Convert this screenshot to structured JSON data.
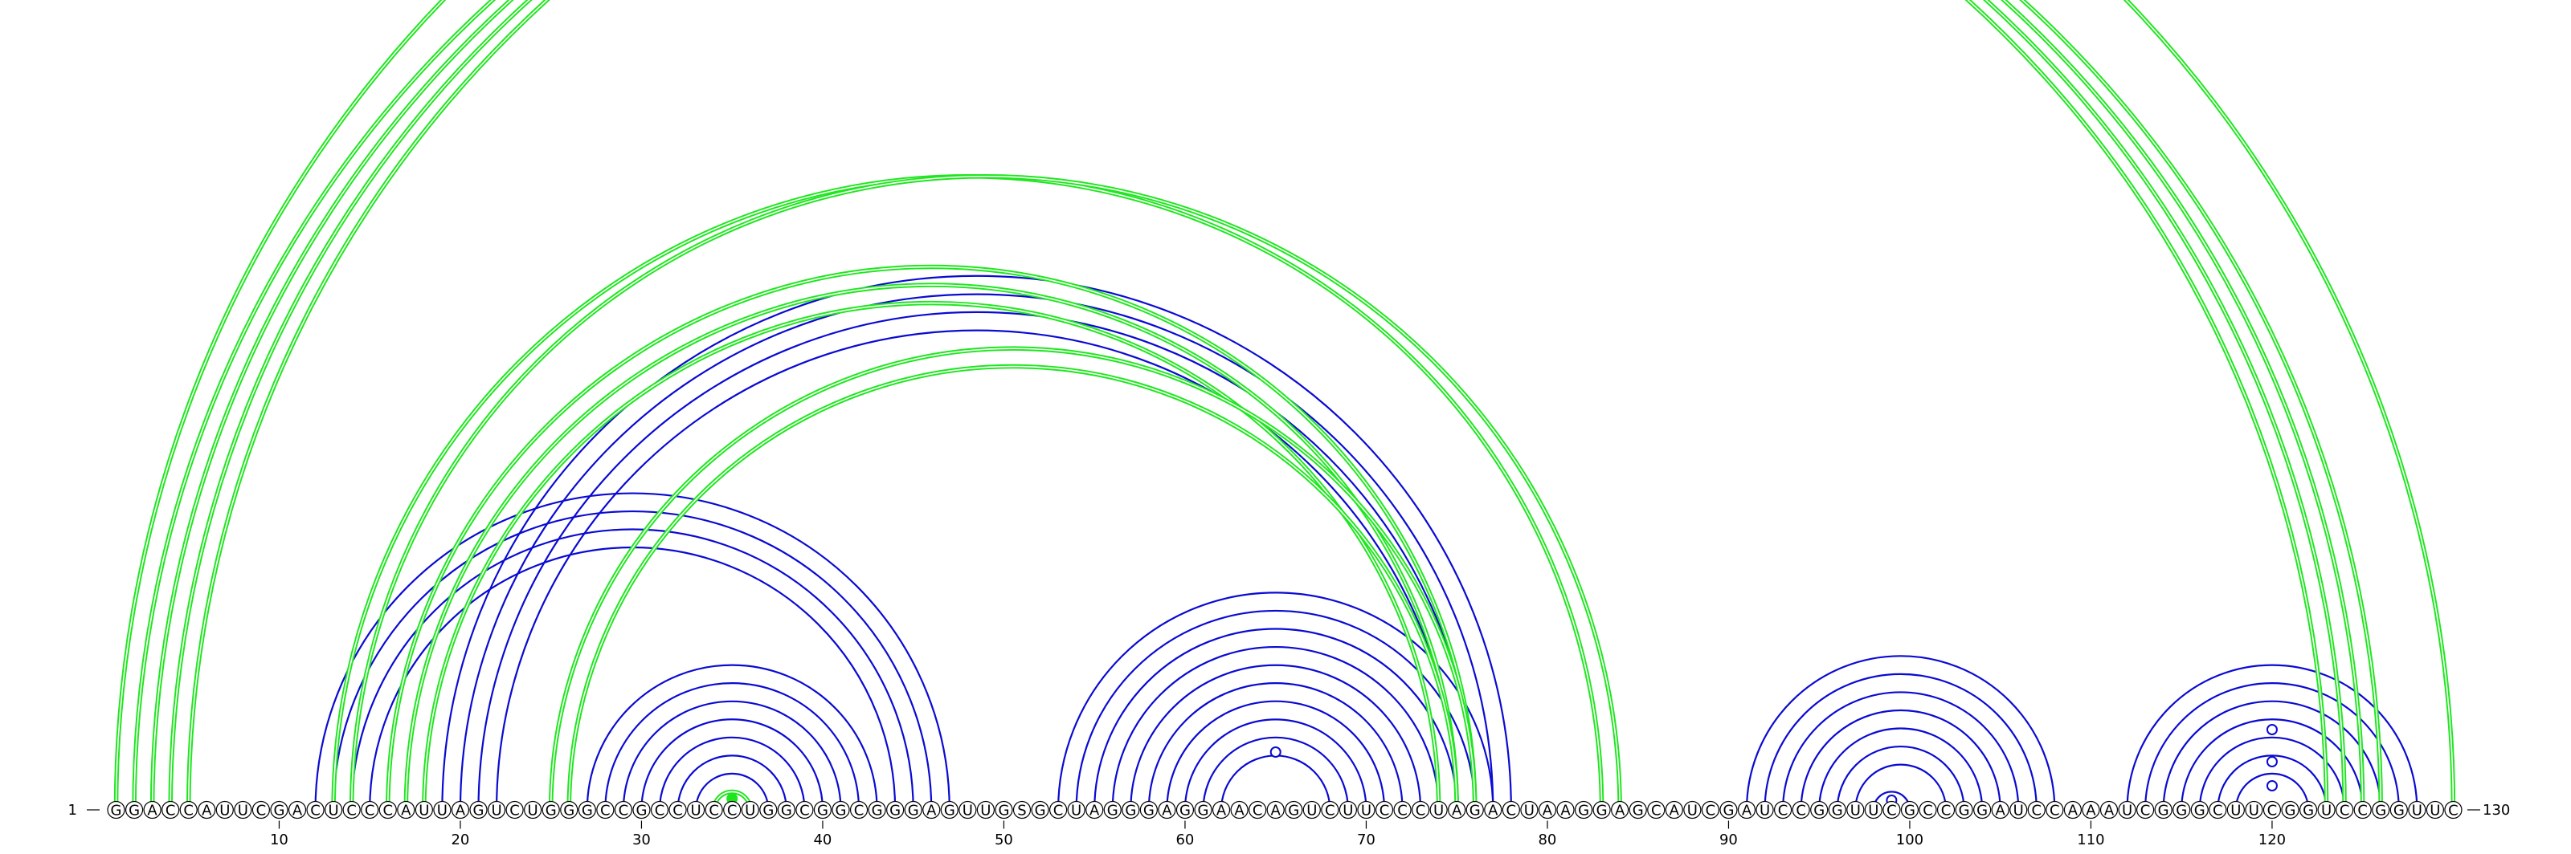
{
  "diagram": {
    "sequence": "GGACCAUUCGACUCCCAUUAGUCUGGGCCGCCUCCUGGCGGCGGGAGUUGSGCUAGGGAGGAACAGUCUUCCCUAGACUAAGGAGCAUCGAUCCGGUUCGCCGGAUCCAAAUCGGGCUUCGGUCCGGUUC",
    "start_label": "1",
    "end_label": "130",
    "tick_labels": [
      "10",
      "20",
      "30",
      "40",
      "50",
      "60",
      "70",
      "80",
      "90",
      "100",
      "110",
      "120"
    ],
    "colors": {
      "blue": "#0a0ad2",
      "green": "#1ee61e",
      "text": "#000000"
    },
    "arc_families": [
      {
        "color": "blue",
        "double": false,
        "i": [
          12,
          13,
          14,
          15
        ],
        "j": [
          47,
          46,
          45,
          44
        ]
      },
      {
        "color": "blue",
        "double": false,
        "i": [
          19,
          20,
          21,
          22
        ],
        "j": [
          78,
          77,
          76,
          75
        ]
      },
      {
        "color": "blue",
        "double": false,
        "i": [
          27,
          28,
          29,
          30,
          31,
          32,
          33,
          34
        ],
        "j": [
          43,
          42,
          41,
          40,
          39,
          38,
          37,
          36
        ]
      },
      {
        "color": "blue",
        "double": false,
        "i": [
          53,
          54,
          55,
          56,
          57,
          58,
          59,
          60,
          61,
          62
        ],
        "j": [
          77,
          76,
          75,
          74,
          73,
          72,
          71,
          70,
          69,
          68
        ]
      },
      {
        "color": "blue",
        "double": false,
        "i": [
          91,
          92,
          93,
          94,
          95,
          96,
          97,
          98
        ],
        "j": [
          108,
          107,
          106,
          105,
          104,
          103,
          102,
          100
        ]
      },
      {
        "color": "blue",
        "double": false,
        "i": [
          112,
          113,
          114,
          115,
          116,
          117,
          118
        ],
        "j": [
          128,
          127,
          126,
          125,
          124,
          123,
          122
        ]
      },
      {
        "color": "green",
        "double": true,
        "i": [
          2,
          3,
          4,
          5
        ],
        "j": [
          123,
          124,
          125,
          126
        ]
      },
      {
        "color": "green",
        "double": true,
        "i": [
          13,
          14
        ],
        "j": [
          83,
          84
        ]
      },
      {
        "color": "green",
        "double": true,
        "i": [
          16,
          17,
          18
        ],
        "j": [
          76,
          75,
          74
        ]
      },
      {
        "color": "green",
        "double": true,
        "i": [
          25,
          26
        ],
        "j": [
          76,
          75
        ]
      },
      {
        "color": "green",
        "double": true,
        "i": [
          1
        ],
        "j": [
          130
        ]
      },
      {
        "color": "green",
        "double": true,
        "i": [
          34
        ],
        "j": [
          36
        ]
      }
    ],
    "markers": [
      {
        "base": 35,
        "radius": 14,
        "color": "green",
        "filled": true
      },
      {
        "base": 65,
        "radius": 72,
        "color": "blue",
        "filled": false
      },
      {
        "base": 99,
        "radius": 12,
        "color": "blue",
        "filled": false
      },
      {
        "base": 120,
        "radius": 100,
        "color": "blue",
        "filled": false
      },
      {
        "base": 120,
        "radius": 60,
        "color": "blue",
        "filled": false
      },
      {
        "base": 120,
        "radius": 30,
        "color": "blue",
        "filled": false
      }
    ]
  }
}
